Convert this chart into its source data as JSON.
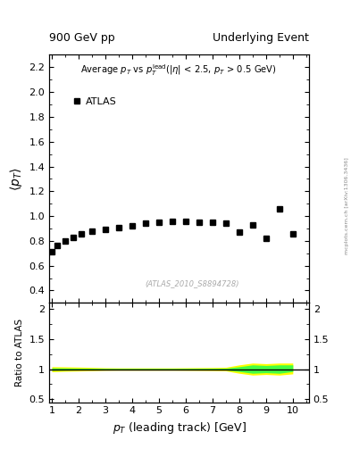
{
  "title_left": "900 GeV pp",
  "title_right": "Underlying Event",
  "legend_label": "ATLAS",
  "watermark": "(ATLAS_2010_S8894728)",
  "ylabel_main": "$\\langle p_T \\rangle$",
  "ylabel_ratio": "Ratio to ATLAS",
  "xlabel": "$p_T$ (leading track) [GeV]",
  "side_label": "mcplots.cern.ch [arXiv:1306.3436]",
  "ylim_main": [
    0.3,
    2.3
  ],
  "ylim_ratio": [
    0.45,
    2.1
  ],
  "yticks_main": [
    0.4,
    0.6,
    0.8,
    1.0,
    1.2,
    1.4,
    1.6,
    1.8,
    2.0,
    2.2
  ],
  "yticks_ratio": [
    0.5,
    1.0,
    1.5,
    2.0
  ],
  "ytick_ratio_labels": [
    "0.5",
    "1",
    "1.5",
    "2"
  ],
  "xlim": [
    0.9,
    10.6
  ],
  "data_x": [
    1.0,
    1.2,
    1.5,
    1.8,
    2.1,
    2.5,
    3.0,
    3.5,
    4.0,
    4.5,
    5.0,
    5.5,
    6.0,
    6.5,
    7.0,
    7.5,
    8.0,
    8.5,
    9.0,
    9.5,
    10.0
  ],
  "data_y": [
    0.71,
    0.76,
    0.8,
    0.83,
    0.86,
    0.88,
    0.89,
    0.91,
    0.92,
    0.94,
    0.95,
    0.96,
    0.96,
    0.95,
    0.95,
    0.94,
    0.87,
    0.93,
    0.82,
    1.06,
    0.86
  ],
  "ratio_x": [
    1.0,
    1.5,
    2.0,
    2.5,
    3.0,
    3.5,
    4.0,
    4.5,
    5.0,
    5.5,
    6.0,
    6.5,
    7.0,
    7.5,
    8.0,
    8.5,
    9.0,
    9.5,
    10.0
  ],
  "green_band_upper": [
    1.02,
    1.018,
    1.015,
    1.013,
    1.011,
    1.01,
    1.01,
    1.01,
    1.01,
    1.01,
    1.011,
    1.012,
    1.013,
    1.015,
    1.04,
    1.07,
    1.06,
    1.07,
    1.07
  ],
  "green_band_lower": [
    0.978,
    0.982,
    0.985,
    0.987,
    0.989,
    0.99,
    0.99,
    0.99,
    0.99,
    0.99,
    0.989,
    0.988,
    0.987,
    0.985,
    0.96,
    0.93,
    0.94,
    0.93,
    0.96
  ],
  "yellow_band_upper": [
    1.04,
    1.037,
    1.033,
    1.028,
    1.022,
    1.02,
    1.02,
    1.02,
    1.02,
    1.02,
    1.022,
    1.024,
    1.026,
    1.03,
    1.07,
    1.1,
    1.09,
    1.1,
    1.1
  ],
  "yellow_band_lower": [
    0.955,
    0.963,
    0.967,
    0.972,
    0.978,
    0.98,
    0.98,
    0.98,
    0.98,
    0.98,
    0.978,
    0.976,
    0.974,
    0.97,
    0.93,
    0.9,
    0.91,
    0.9,
    0.92
  ],
  "marker_color": "black",
  "marker_style": "s",
  "marker_size": 4,
  "bg_color": "#ffffff",
  "xticks": [
    1,
    2,
    3,
    4,
    5,
    6,
    7,
    8,
    9,
    10
  ]
}
